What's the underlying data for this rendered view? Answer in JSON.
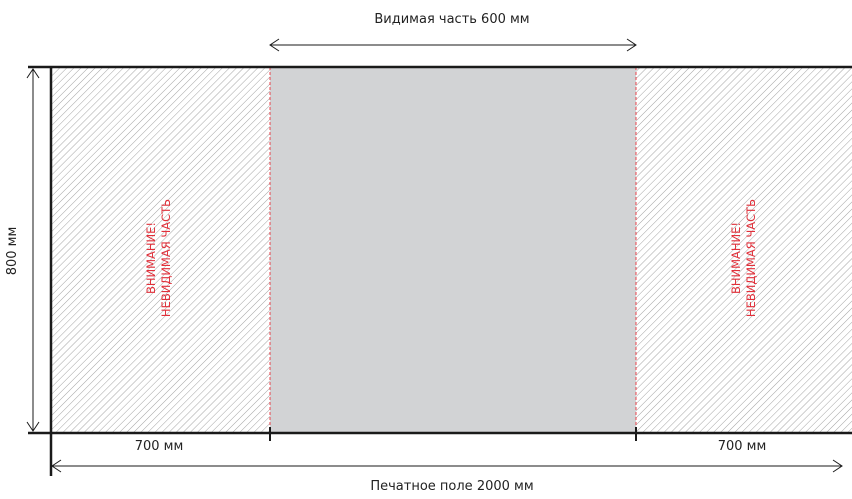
{
  "visible_label": "Видимая часть 600 мм",
  "height_label": "800 мм",
  "left_width_label": "700 мм",
  "right_width_label": "700 мм",
  "total_label": "Печатное поле 2000 мм",
  "left_warning": {
    "line1": "ВНИМАНИЕ!",
    "line2": "НЕВИДИМАЯ ЧАСТЬ"
  },
  "right_warning": {
    "line1": "ВНИМАНИЕ!",
    "line2": "НЕВИДИМАЯ ЧАСТЬ"
  },
  "colors": {
    "visible_fill": "#d2d3d5",
    "hatch": "#9a9a9a",
    "warning_text": "#e0303a",
    "guide_line": "#e8434c",
    "frame": "#1a1a1a"
  }
}
